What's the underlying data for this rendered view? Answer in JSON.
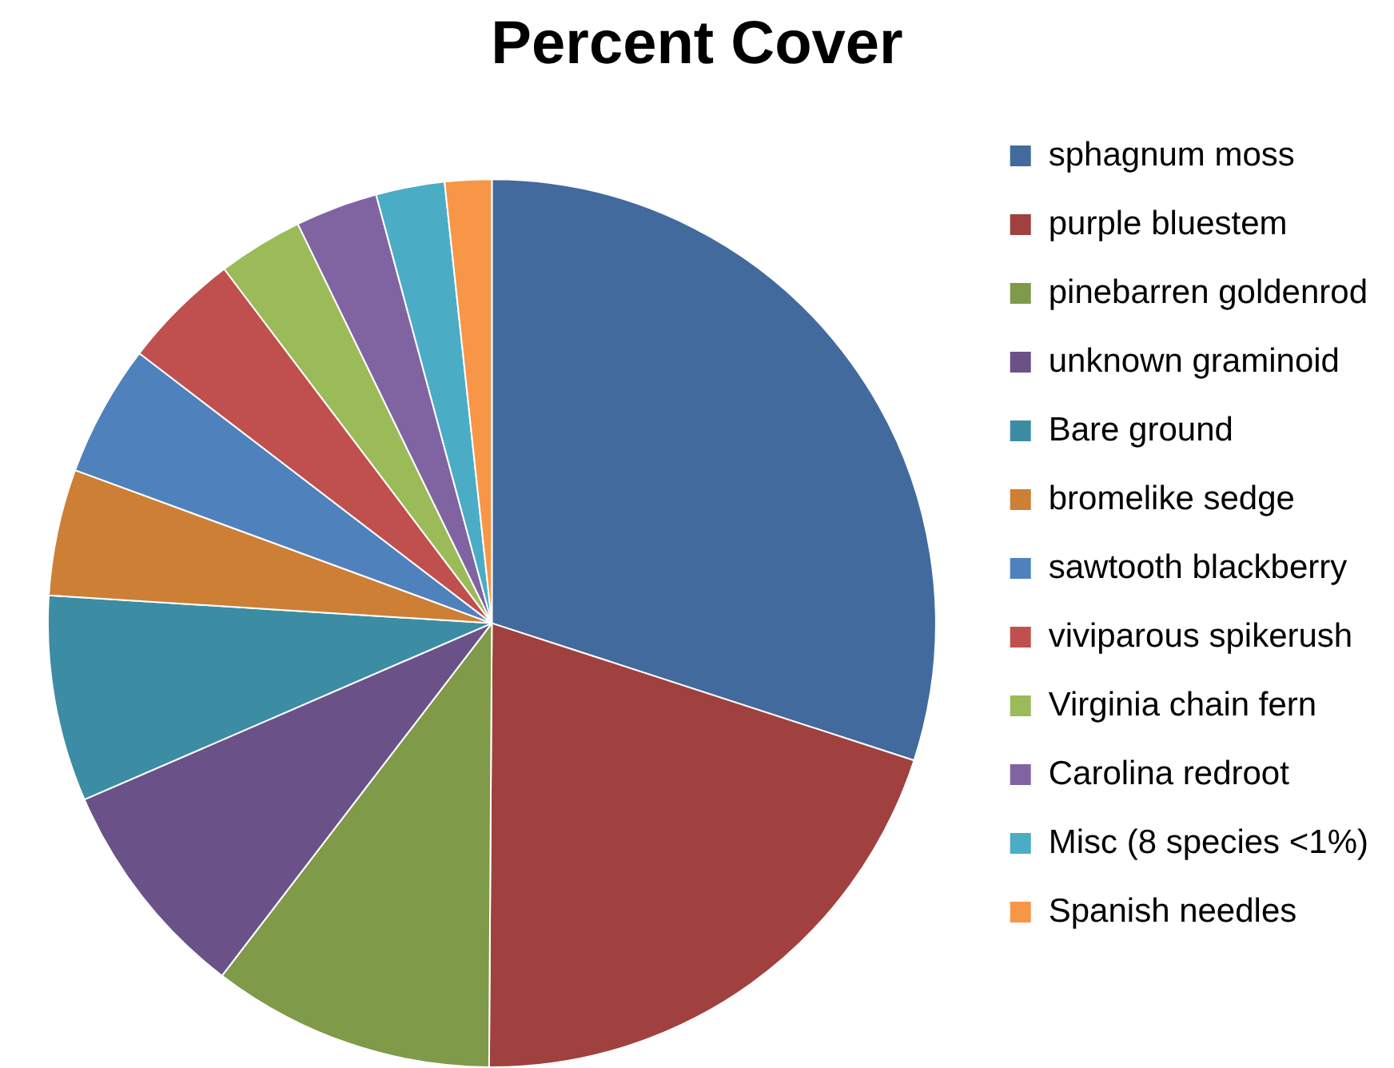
{
  "chart_data": {
    "type": "pie",
    "title": "Percent Cover",
    "categories": [
      "sphagnum moss",
      "purple bluestem",
      "pinebarren goldenrod",
      "unknown graminoid",
      "Bare ground",
      "bromelike sedge",
      "sawtooth blackberry",
      "viviparous spikerush",
      "Virginia chain fern",
      "Carolina redroot",
      "Misc (8 species <1%)",
      "Spanish needles"
    ],
    "values": [
      30.0,
      20.1,
      10.3,
      8.1,
      7.5,
      4.6,
      4.8,
      4.3,
      3.1,
      3.0,
      2.5,
      1.7
    ],
    "colors": [
      "#426a9c",
      "#a0413f",
      "#7f9a48",
      "#6a5289",
      "#3c8da3",
      "#cd7f36",
      "#4f81bd",
      "#c0504d",
      "#9bbb59",
      "#8064a2",
      "#4bacc6",
      "#f79646"
    ],
    "legend": "right"
  }
}
